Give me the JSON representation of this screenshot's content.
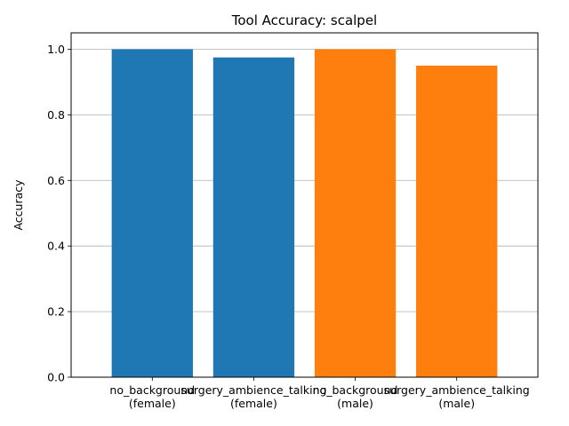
{
  "chart_data": {
    "type": "bar",
    "title": "Tool Accuracy: scalpel",
    "xlabel": "",
    "ylabel": "Accuracy",
    "ylim": [
      0,
      1.05
    ],
    "yticks": [
      "0.0",
      "0.2",
      "0.4",
      "0.6",
      "0.8",
      "1.0"
    ],
    "grid": "horizontal",
    "categories": [
      [
        "no_background",
        "(female)"
      ],
      [
        "surgery_ambience_talking",
        "(female)"
      ],
      [
        "no_background",
        "(male)"
      ],
      [
        "surgery_ambience_talking",
        "(male)"
      ]
    ],
    "values": [
      1.0,
      0.975,
      1.0,
      0.95
    ],
    "colors": [
      "#1f77b4",
      "#1f77b4",
      "#ff7f0e",
      "#ff7f0e"
    ]
  }
}
